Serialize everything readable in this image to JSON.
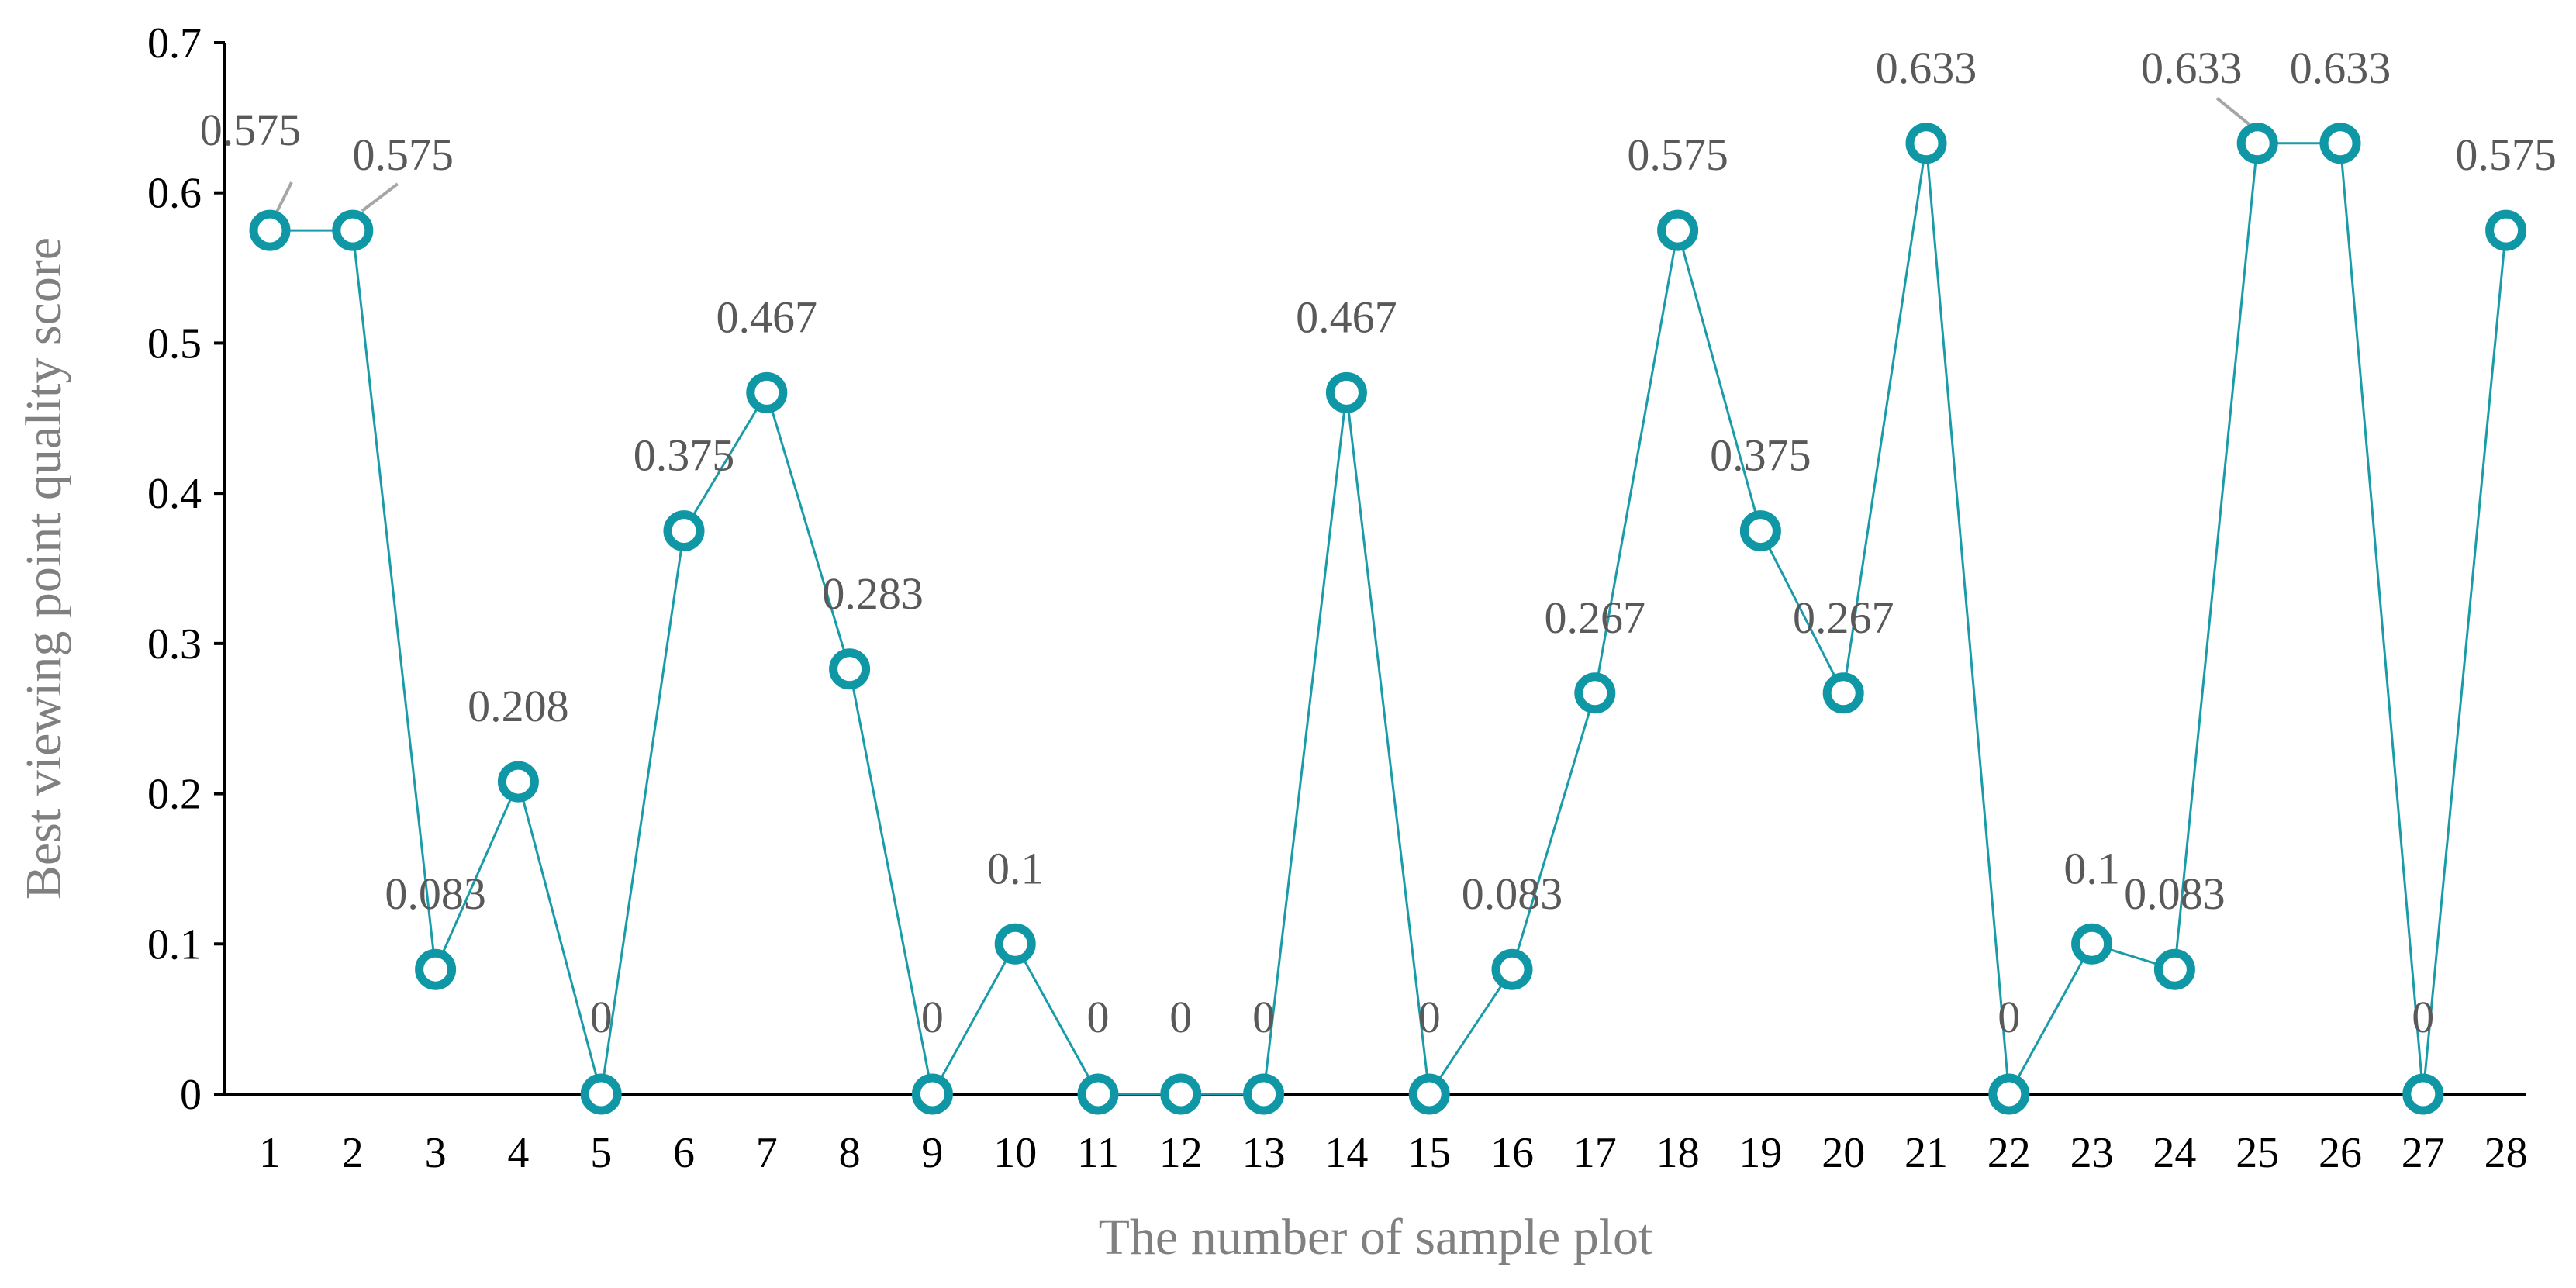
{
  "chart_data": {
    "type": "line",
    "title": "",
    "xlabel": "The number of sample plot",
    "ylabel": "Best viewing point quality score",
    "categories": [
      "1",
      "2",
      "3",
      "4",
      "5",
      "6",
      "7",
      "8",
      "9",
      "10",
      "11",
      "12",
      "13",
      "14",
      "15",
      "16",
      "17",
      "18",
      "19",
      "20",
      "21",
      "22",
      "23",
      "24",
      "25",
      "26",
      "27",
      "28"
    ],
    "series": [
      {
        "values": [
          0.575,
          0.575,
          0.083,
          0.208,
          0,
          0.375,
          0.467,
          0.283,
          0,
          0.1,
          0,
          0,
          0,
          0.467,
          0,
          0.083,
          0.267,
          0.575,
          0.375,
          0.267,
          0.633,
          0,
          0.1,
          0.083,
          0.633,
          0.633,
          0,
          0.575
        ],
        "data_labels": [
          "0.575",
          "0.575",
          "0.083",
          "0.208",
          "0",
          "0.375",
          "0.467",
          "0.283",
          "0",
          "0.1",
          "0",
          "0",
          "0",
          "0.467",
          "0",
          "0.083",
          "0.267",
          "0.575",
          "0.375",
          "0.267",
          "0.633",
          "0",
          "0.1",
          "0.083",
          "0.633",
          "0.633",
          "0",
          "0.575"
        ]
      }
    ],
    "ylim": [
      0,
      0.7
    ],
    "yticks": [
      "0",
      "0.1",
      "0.2",
      "0.3",
      "0.4",
      "0.5",
      "0.6",
      "0.7"
    ],
    "grid": false,
    "legend": "none",
    "line_color": "#1a9ba8",
    "marker_color": "#0f97a5",
    "data_label_color": "#595959",
    "axis_title_color": "#808080",
    "leader_line_color": "#a6a6a6"
  }
}
